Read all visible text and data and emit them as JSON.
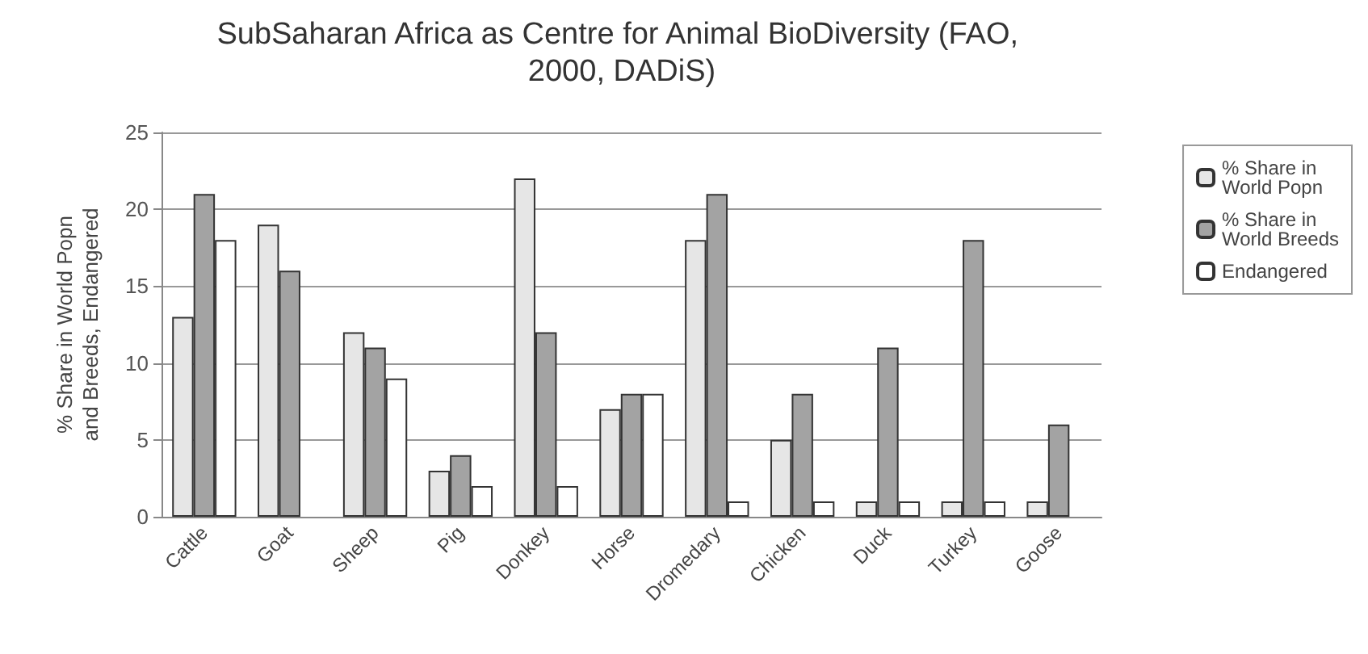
{
  "chart_data": {
    "type": "bar",
    "title": "SubSaharan Africa as Centre for Animal BioDiversity (FAO, 2000, DADiS)",
    "ylabel": "% Share in World Popn and Breeds, Endangered",
    "categories": [
      "Cattle",
      "Goat",
      "Sheep",
      "Pig",
      "Donkey",
      "Horse",
      "Dromedary",
      "Chicken",
      "Duck",
      "Turkey",
      "Goose"
    ],
    "series": [
      {
        "name": "% Share in World Popn",
        "color": "#e6e6e6",
        "values": [
          13,
          19,
          12,
          3,
          22,
          7,
          18,
          5,
          1,
          1,
          1
        ]
      },
      {
        "name": "% Share in World Breeds",
        "color": "#a3a3a3",
        "values": [
          21,
          16,
          11,
          4,
          12,
          8,
          21,
          8,
          11,
          18,
          6
        ]
      },
      {
        "name": "Endangered",
        "color": "#ffffff",
        "values": [
          18,
          null,
          9,
          2,
          2,
          8,
          1,
          1,
          1,
          1,
          null
        ]
      }
    ],
    "ylim": [
      0,
      25
    ],
    "yticks": [
      0,
      5,
      10,
      15,
      20,
      25
    ],
    "grid": "y",
    "legend": "right"
  }
}
